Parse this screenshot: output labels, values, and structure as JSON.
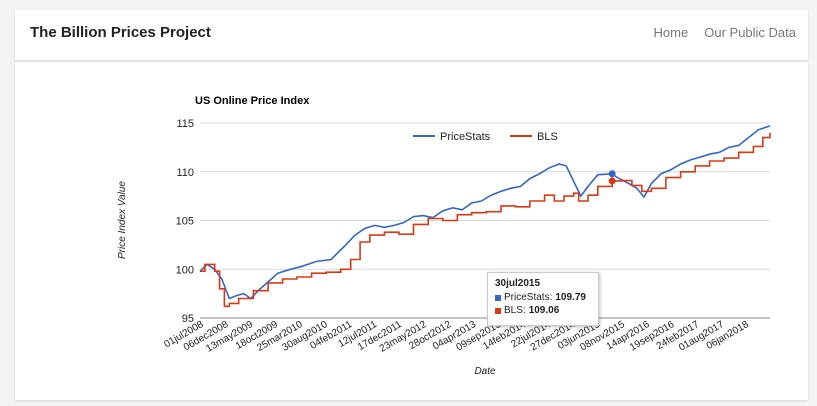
{
  "navbar": {
    "brand": "The Billion Prices Project",
    "links": [
      "Home",
      "Our Public Data"
    ]
  },
  "colors": {
    "pricestats": "#3366cc",
    "bls": "#dc3912"
  },
  "tooltip": {
    "date": "30jul2015",
    "rows": [
      {
        "label": "PriceStats:",
        "value": "109.79"
      },
      {
        "label": "BLS:",
        "value": "109.06"
      }
    ]
  },
  "chart_data": {
    "type": "line",
    "title": "US Online Price Index",
    "xlabel": "Date",
    "ylabel": "Price Index Value",
    "ylim": [
      95,
      115
    ],
    "yticks": [
      "95",
      "100",
      "105",
      "110",
      "115"
    ],
    "xticks": [
      "01jul2008",
      "06dec2008",
      "13may2009",
      "18oct2009",
      "25mar2010",
      "30aug2010",
      "04feb2011",
      "12jul2011",
      "17dec2011",
      "23may2012",
      "28oct2012",
      "04apr2013",
      "09sep2013",
      "14feb2014",
      "22jul2014",
      "27dec2014",
      "03jun2015",
      "08nov2015",
      "14apr2016",
      "19sep2016",
      "24feb2017",
      "01aug2017",
      "06jan2018"
    ],
    "xlim": [
      "2008-07-01",
      "2018-04-15"
    ],
    "grid": true,
    "legend_position": "top",
    "series": [
      {
        "name": "PriceStats",
        "x": [
          "2008-07-01",
          "2008-08-15",
          "2008-10-01",
          "2008-11-15",
          "2009-01-01",
          "2009-02-15",
          "2009-04-01",
          "2009-05-15",
          "2009-07-01",
          "2009-09-01",
          "2009-11-01",
          "2010-01-01",
          "2010-04-01",
          "2010-07-01",
          "2010-10-01",
          "2011-01-01",
          "2011-03-01",
          "2011-05-01",
          "2011-07-01",
          "2011-09-01",
          "2011-11-01",
          "2012-01-01",
          "2012-03-01",
          "2012-05-01",
          "2012-07-01",
          "2012-09-01",
          "2012-11-01",
          "2013-01-01",
          "2013-03-01",
          "2013-05-01",
          "2013-07-01",
          "2013-09-01",
          "2013-11-01",
          "2014-01-01",
          "2014-03-01",
          "2014-05-01",
          "2014-07-01",
          "2014-09-01",
          "2014-10-15",
          "2014-12-01",
          "2015-01-15",
          "2015-03-01",
          "2015-05-01",
          "2015-07-30",
          "2015-09-01",
          "2015-11-01",
          "2016-01-01",
          "2016-02-15",
          "2016-04-01",
          "2016-06-01",
          "2016-08-01",
          "2016-10-01",
          "2016-12-01",
          "2017-02-01",
          "2017-04-01",
          "2017-06-01",
          "2017-08-01",
          "2017-10-01",
          "2017-12-01",
          "2018-02-01",
          "2018-04-15"
        ],
        "y": [
          99.8,
          100.5,
          100.0,
          99.0,
          97.0,
          97.3,
          97.5,
          97.0,
          97.8,
          98.7,
          99.6,
          99.9,
          100.3,
          100.8,
          101.0,
          102.5,
          103.5,
          104.2,
          104.5,
          104.3,
          104.5,
          104.8,
          105.4,
          105.5,
          105.3,
          106.0,
          106.3,
          106.1,
          106.8,
          107.0,
          107.6,
          108.0,
          108.3,
          108.5,
          109.3,
          109.8,
          110.4,
          110.8,
          110.6,
          109.0,
          107.5,
          108.5,
          109.7,
          109.79,
          109.4,
          108.9,
          108.3,
          107.4,
          108.8,
          109.8,
          110.2,
          110.8,
          111.2,
          111.5,
          111.8,
          112.0,
          112.5,
          112.7,
          113.5,
          114.3,
          114.7
        ]
      },
      {
        "name": "BLS",
        "x": [
          "2008-07-01",
          "2008-08-01",
          "2008-09-01",
          "2008-10-01",
          "2008-11-01",
          "2008-12-01",
          "2009-01-01",
          "2009-03-01",
          "2009-06-01",
          "2009-09-01",
          "2009-12-01",
          "2010-03-01",
          "2010-06-01",
          "2010-09-01",
          "2010-12-01",
          "2011-02-01",
          "2011-04-01",
          "2011-06-01",
          "2011-09-01",
          "2011-12-01",
          "2012-03-01",
          "2012-06-01",
          "2012-09-01",
          "2012-12-01",
          "2013-03-01",
          "2013-06-01",
          "2013-09-01",
          "2013-12-01",
          "2014-03-01",
          "2014-06-01",
          "2014-08-01",
          "2014-10-01",
          "2014-12-01",
          "2015-01-01",
          "2015-03-01",
          "2015-05-01",
          "2015-07-30",
          "2015-10-01",
          "2015-12-01",
          "2016-02-01",
          "2016-04-01",
          "2016-07-01",
          "2016-10-01",
          "2017-01-01",
          "2017-04-01",
          "2017-07-01",
          "2017-10-01",
          "2018-01-01",
          "2018-03-01",
          "2018-04-15"
        ],
        "y": [
          99.8,
          100.5,
          100.5,
          99.8,
          98.0,
          96.2,
          96.5,
          97.0,
          97.8,
          98.6,
          99.0,
          99.2,
          99.6,
          99.7,
          100.0,
          101.0,
          102.8,
          103.5,
          103.8,
          103.6,
          104.6,
          105.2,
          105.0,
          105.6,
          105.8,
          105.9,
          106.5,
          106.4,
          107.0,
          107.6,
          107.0,
          107.5,
          107.8,
          107.0,
          107.6,
          108.5,
          109.06,
          109.1,
          108.6,
          108.0,
          108.3,
          109.4,
          110.0,
          110.6,
          111.1,
          111.4,
          112.0,
          112.6,
          113.5,
          114.0
        ]
      }
    ]
  }
}
